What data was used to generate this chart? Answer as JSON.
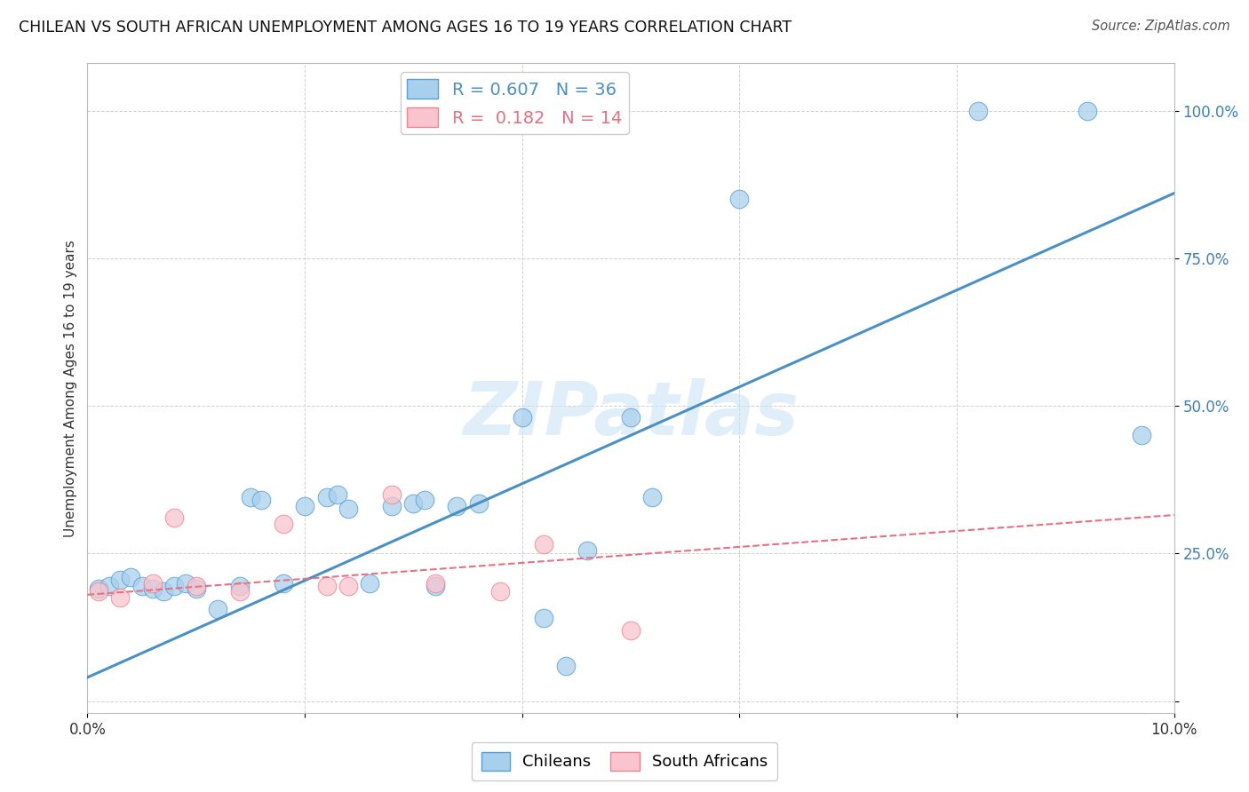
{
  "title": "CHILEAN VS SOUTH AFRICAN UNEMPLOYMENT AMONG AGES 16 TO 19 YEARS CORRELATION CHART",
  "source": "Source: ZipAtlas.com",
  "ylabel": "Unemployment Among Ages 16 to 19 years",
  "xlim": [
    0.0,
    0.1
  ],
  "ylim": [
    -0.02,
    1.08
  ],
  "xtick_positions": [
    0.0,
    0.02,
    0.04,
    0.06,
    0.08,
    0.1
  ],
  "xticklabels": [
    "0.0%",
    "",
    "",
    "",
    "",
    "10.0%"
  ],
  "ytick_positions": [
    0.0,
    0.25,
    0.5,
    0.75,
    1.0
  ],
  "yticklabels": [
    "",
    "25.0%",
    "50.0%",
    "75.0%",
    "100.0%"
  ],
  "blue_R": "0.607",
  "blue_N": "36",
  "pink_R": "0.182",
  "pink_N": "14",
  "blue_color": "#a8d0ec",
  "pink_color": "#f9c4ce",
  "blue_edge_color": "#5b9fd4",
  "pink_edge_color": "#f4828e",
  "blue_line_color": "#4a90c4",
  "pink_line_color": "#e87080",
  "watermark": "ZIPatlas",
  "blue_scatter_x": [
    0.001,
    0.002,
    0.003,
    0.004,
    0.005,
    0.006,
    0.007,
    0.008,
    0.009,
    0.01,
    0.012,
    0.014,
    0.015,
    0.016,
    0.018,
    0.02,
    0.022,
    0.023,
    0.024,
    0.026,
    0.028,
    0.03,
    0.031,
    0.032,
    0.034,
    0.036,
    0.04,
    0.042,
    0.044,
    0.046,
    0.05,
    0.052,
    0.06,
    0.082,
    0.092,
    0.097
  ],
  "blue_scatter_y": [
    0.19,
    0.195,
    0.205,
    0.21,
    0.195,
    0.19,
    0.185,
    0.195,
    0.2,
    0.19,
    0.155,
    0.195,
    0.345,
    0.34,
    0.2,
    0.33,
    0.345,
    0.35,
    0.325,
    0.2,
    0.33,
    0.335,
    0.34,
    0.195,
    0.33,
    0.335,
    0.48,
    0.14,
    0.06,
    0.255,
    0.48,
    0.345,
    0.85,
    1.0,
    1.0,
    0.45
  ],
  "pink_scatter_x": [
    0.001,
    0.003,
    0.006,
    0.008,
    0.01,
    0.014,
    0.018,
    0.022,
    0.024,
    0.028,
    0.032,
    0.038,
    0.042,
    0.05
  ],
  "pink_scatter_y": [
    0.185,
    0.175,
    0.2,
    0.31,
    0.195,
    0.185,
    0.3,
    0.195,
    0.195,
    0.35,
    0.2,
    0.185,
    0.265,
    0.12
  ],
  "blue_trend_x": [
    0.0,
    0.1
  ],
  "blue_trend_y": [
    0.04,
    0.86
  ],
  "pink_trend_x": [
    0.0,
    0.1
  ],
  "pink_trend_y": [
    0.18,
    0.315
  ],
  "grid_color": "#d0d0d0",
  "background_color": "#ffffff",
  "tick_label_color": "#3a7fc1",
  "axis_color": "#bbbbbb"
}
